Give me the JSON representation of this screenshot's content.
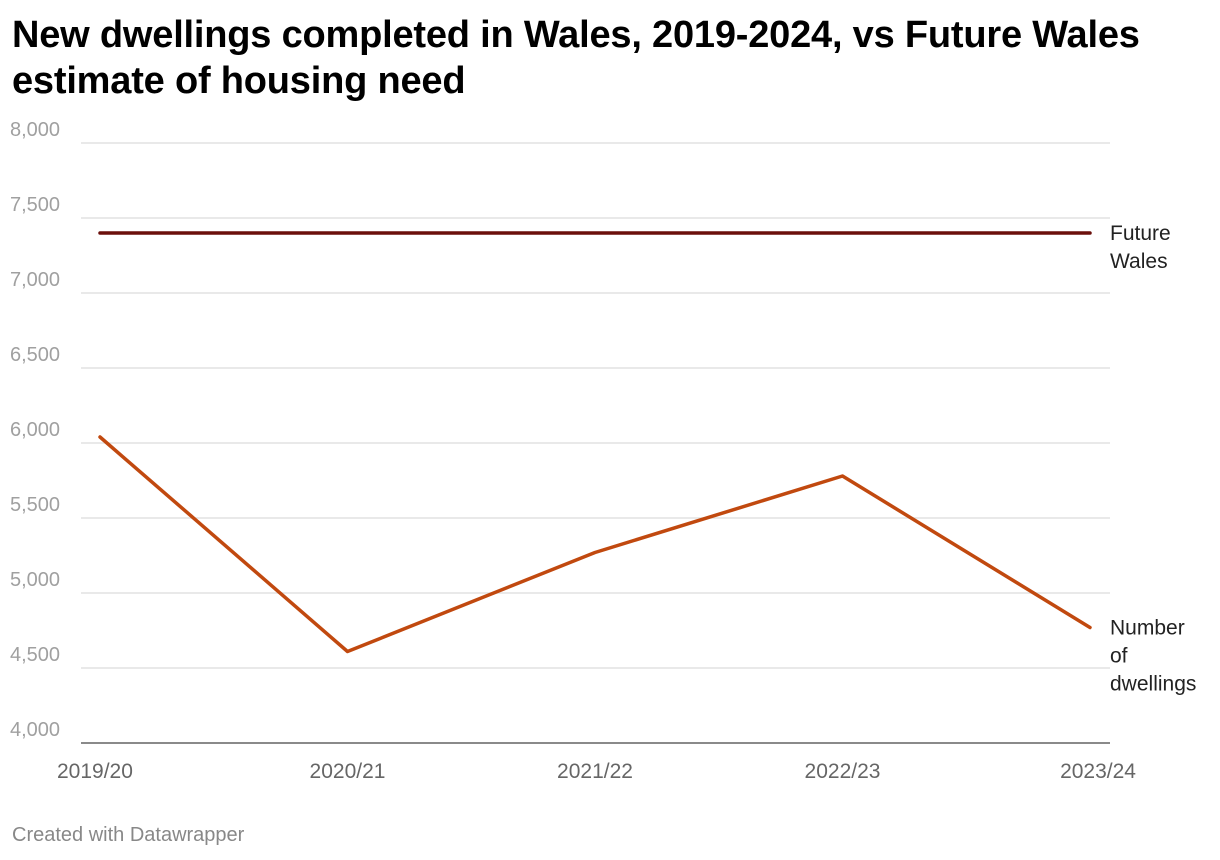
{
  "chart_data": {
    "type": "line",
    "title": "New dwellings completed in Wales, 2019-2024, vs Future Wales estimate of housing need",
    "categories": [
      "2019/20",
      "2020/21",
      "2021/22",
      "2022/23",
      "2023/24"
    ],
    "ylim": [
      4000,
      8000
    ],
    "yticks": [
      4000,
      4500,
      5000,
      5500,
      6000,
      6500,
      7000,
      7500,
      8000
    ],
    "ytick_labels": [
      "4,000",
      "4,500",
      "5,000",
      "5,500",
      "6,000",
      "6,500",
      "7,000",
      "7,500",
      "8,000"
    ],
    "grid": true,
    "series": [
      {
        "name": "Future Wales",
        "label_lines": [
          "Future",
          "Wales"
        ],
        "values": [
          7400,
          7400,
          7400,
          7400,
          7400
        ],
        "color": "#6b0f0b"
      },
      {
        "name": "Number of dwellings",
        "label_lines": [
          "Number",
          "of",
          "dwellings"
        ],
        "values": [
          6040,
          4610,
          5270,
          5780,
          4770
        ],
        "color": "#c1490f"
      }
    ]
  },
  "footer": "Created with Datawrapper"
}
